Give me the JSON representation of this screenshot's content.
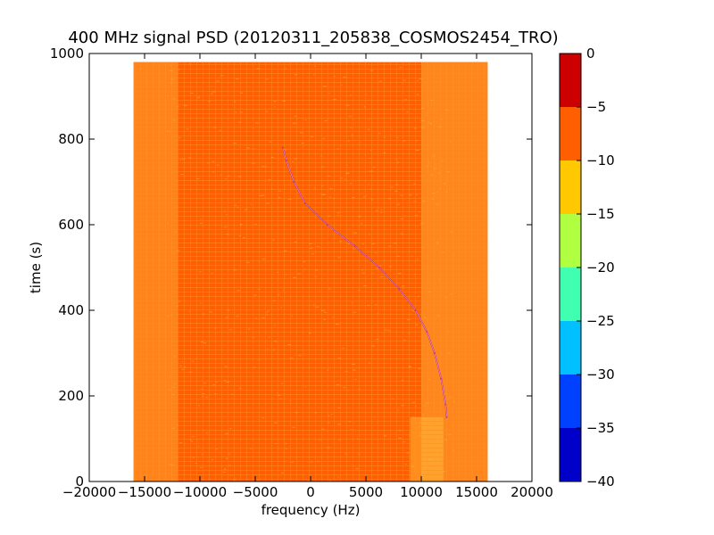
{
  "chart_data": {
    "type": "heatmap",
    "title": "400 MHz signal PSD (20120311_205838_COSMOS2454_TRO)",
    "xlabel": "frequency (Hz)",
    "ylabel": "time (s)",
    "xlim": [
      -20000,
      20000
    ],
    "ylim": [
      0,
      1000
    ],
    "xticks": [
      -20000,
      -15000,
      -10000,
      -5000,
      0,
      5000,
      10000,
      15000,
      20000
    ],
    "yticks": [
      0,
      200,
      400,
      600,
      800,
      1000
    ],
    "data_extent": {
      "x": [
        -16000,
        16000
      ],
      "y": [
        0,
        980
      ]
    },
    "background_level_band": [
      -10,
      -5
    ],
    "background_color": "#ff5f00",
    "edge_color": "#ffa030",
    "weak_edge_color": "#ffc840",
    "grid": false,
    "signal_trace": {
      "color": "#c03080",
      "points": [
        {
          "x": 12300,
          "y": 150
        },
        {
          "x": 12200,
          "y": 180
        },
        {
          "x": 11800,
          "y": 240
        },
        {
          "x": 11200,
          "y": 300
        },
        {
          "x": 10500,
          "y": 350
        },
        {
          "x": 9500,
          "y": 400
        },
        {
          "x": 8000,
          "y": 450
        },
        {
          "x": 6200,
          "y": 500
        },
        {
          "x": 4000,
          "y": 550
        },
        {
          "x": 1500,
          "y": 600
        },
        {
          "x": -500,
          "y": 650
        },
        {
          "x": -1500,
          "y": 700
        },
        {
          "x": -2200,
          "y": 750
        },
        {
          "x": -2500,
          "y": 780
        }
      ]
    },
    "colorbar": {
      "levels": [
        -40,
        -35,
        -30,
        -25,
        -20,
        -15,
        -10,
        -5,
        0
      ],
      "ticks": [
        0,
        -5,
        -10,
        -15,
        -20,
        -25,
        -30,
        -35,
        -40
      ],
      "colors": [
        "#0000c8",
        "#0040ff",
        "#00c0ff",
        "#40ffb0",
        "#b0ff40",
        "#ffc800",
        "#ff5f00",
        "#cc0000"
      ]
    }
  }
}
